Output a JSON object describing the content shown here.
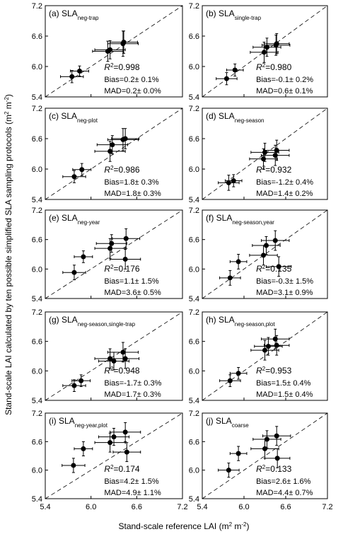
{
  "y_label": [
    "Stand-scale LAI calculated by ten possible simplified SLA sampling protocols (m",
    "2",
    " m",
    "-2",
    ")"
  ],
  "x_label": [
    "Stand-scale reference LAI (m",
    "2",
    " m",
    "-2",
    ")"
  ],
  "chart_data": [
    {
      "type": "scatter",
      "title": "(a) SLA",
      "title_sub": "neg-trap",
      "xlim": [
        5.4,
        7.2
      ],
      "ylim": [
        5.4,
        7.2
      ],
      "xticks": [
        5.4,
        6,
        6.6,
        7.2
      ],
      "show_xtick_labels": false,
      "yticks": [
        5.4,
        {
          "value": 6,
          "label": "6.0"
        },
        6.6,
        7.2
      ],
      "color": "#000000",
      "x": [
        5.75,
        5.85,
        6.22,
        6.25,
        6.42,
        6.43
      ],
      "y": [
        5.8,
        5.91,
        6.3,
        6.33,
        6.45,
        6.48
      ],
      "xerr": [
        0.15,
        0.12,
        0.2,
        0.2,
        0.2,
        0.18
      ],
      "yerr": [
        0.12,
        0.1,
        0.2,
        0.18,
        0.25,
        0.22
      ],
      "r2_symbol": "R",
      "r2_exponent": "2",
      "r2_text": "=0.998",
      "bias": "Bias=0.2± 0.1%",
      "mad": "MAD=0.2± 0.0%"
    },
    {
      "type": "scatter",
      "title": "(b) SLA",
      "title_sub": "single-trap",
      "xlim": [
        5.4,
        7.2
      ],
      "ylim": [
        5.4,
        7.2
      ],
      "xticks": [
        5.4,
        6,
        6.6,
        7.2
      ],
      "show_xtick_labels": false,
      "yticks": [
        5.4,
        {
          "value": 6,
          "label": "6.0"
        },
        6.6,
        7.2
      ],
      "color": "#000000",
      "x": [
        5.75,
        5.87,
        6.29,
        6.33,
        6.46,
        6.47
      ],
      "y": [
        5.76,
        5.93,
        6.28,
        6.38,
        6.42,
        6.45
      ],
      "xerr": [
        0.15,
        0.12,
        0.2,
        0.2,
        0.2,
        0.18
      ],
      "yerr": [
        0.12,
        0.12,
        0.2,
        0.18,
        0.2,
        0.2
      ],
      "r2_symbol": "R",
      "r2_exponent": "2",
      "r2_text": "=0.980",
      "bias": "Bias=-0.1± 0.2%",
      "mad": "MAD=0.6± 0.1%"
    },
    {
      "type": "scatter",
      "title": "(c) SLA",
      "title_sub": "neg-plot",
      "xlim": [
        5.4,
        7.2
      ],
      "ylim": [
        5.4,
        7.2
      ],
      "xticks": [
        5.4,
        6,
        6.6,
        7.2
      ],
      "show_xtick_labels": false,
      "yticks": [
        5.4,
        {
          "value": 6,
          "label": "6.0"
        },
        6.6,
        7.2
      ],
      "color": "#000000",
      "x": [
        5.78,
        5.88,
        6.25,
        6.28,
        6.42,
        6.45
      ],
      "y": [
        5.85,
        5.99,
        6.35,
        6.48,
        6.58,
        6.6
      ],
      "xerr": [
        0.15,
        0.12,
        0.2,
        0.2,
        0.2,
        0.18
      ],
      "yerr": [
        0.12,
        0.12,
        0.2,
        0.18,
        0.22,
        0.2
      ],
      "r2_symbol": "R",
      "r2_exponent": "2",
      "r2_text": "=0.986",
      "bias": "Bias=1.8± 0.3%",
      "mad": "MAD=1.8± 0.3%"
    },
    {
      "type": "scatter",
      "title": "(d) SLA",
      "title_sub": "neg-season",
      "xlim": [
        5.4,
        7.2
      ],
      "ylim": [
        5.4,
        7.2
      ],
      "xticks": [
        5.4,
        6,
        6.6,
        7.2
      ],
      "show_xtick_labels": false,
      "yticks": [
        5.4,
        {
          "value": 6,
          "label": "6.0"
        },
        6.6,
        7.2
      ],
      "color": "#000000",
      "x": [
        5.78,
        5.85,
        6.28,
        6.3,
        6.45,
        6.47
      ],
      "y": [
        5.73,
        5.77,
        6.2,
        6.33,
        6.27,
        6.37
      ],
      "xerr": [
        0.15,
        0.12,
        0.2,
        0.2,
        0.2,
        0.18
      ],
      "yerr": [
        0.15,
        0.12,
        0.2,
        0.18,
        0.2,
        0.2
      ],
      "r2_symbol": "R",
      "r2_exponent": "2",
      "r2_text": "=0.932",
      "bias": "Bias=-1.2± 0.4%",
      "mad": "MAD=1.4± 0.2%"
    },
    {
      "type": "scatter",
      "title": "(e) SLA",
      "title_sub": "neg-year",
      "xlim": [
        5.4,
        7.2
      ],
      "ylim": [
        5.4,
        7.2
      ],
      "xticks": [
        5.4,
        6,
        6.6,
        7.2
      ],
      "show_xtick_labels": false,
      "yticks": [
        5.4,
        {
          "value": 6,
          "label": "6.0"
        },
        6.6,
        7.2
      ],
      "color": "#000000",
      "x": [
        5.78,
        5.9,
        6.25,
        6.27,
        6.45,
        6.46
      ],
      "y": [
        5.93,
        6.25,
        6.42,
        6.52,
        6.2,
        6.62
      ],
      "xerr": [
        0.15,
        0.12,
        0.2,
        0.2,
        0.2,
        0.18
      ],
      "yerr": [
        0.15,
        0.12,
        0.2,
        0.18,
        0.2,
        0.2
      ],
      "r2_symbol": "R",
      "r2_exponent": "2",
      "r2_text": "=0.176",
      "bias": "Bias=1.1± 1.5%",
      "mad": "MAD=3.6± 0.5%"
    },
    {
      "type": "scatter",
      "title": "(f) SLA",
      "title_sub": "neg-season,year",
      "xlim": [
        5.4,
        7.2
      ],
      "ylim": [
        5.4,
        7.2
      ],
      "xticks": [
        5.4,
        6,
        6.6,
        7.2
      ],
      "show_xtick_labels": false,
      "yticks": [
        5.4,
        {
          "value": 6,
          "label": "6.0"
        },
        6.6,
        7.2
      ],
      "color": "#000000",
      "x": [
        5.8,
        5.92,
        6.28,
        6.32,
        6.45,
        6.5
      ],
      "y": [
        5.82,
        6.15,
        6.28,
        6.48,
        6.58,
        6.05
      ],
      "xerr": [
        0.15,
        0.12,
        0.2,
        0.2,
        0.2,
        0.18
      ],
      "yerr": [
        0.15,
        0.15,
        0.2,
        0.18,
        0.2,
        0.2
      ],
      "r2_symbol": "R",
      "r2_exponent": "2",
      "r2_text": "=0.135",
      "bias": "Bias=-0.3± 1.5%",
      "mad": "MAD=3.1± 0.9%"
    },
    {
      "type": "scatter",
      "title": "(g) SLA",
      "title_sub": "neg-season,single-trap",
      "xlim": [
        5.4,
        7.2
      ],
      "ylim": [
        5.4,
        7.2
      ],
      "xticks": [
        5.4,
        6,
        6.6,
        7.2
      ],
      "show_xtick_labels": false,
      "yticks": [
        5.4,
        {
          "value": 6,
          "label": "6.0"
        },
        6.6,
        7.2
      ],
      "color": "#000000",
      "x": [
        5.78,
        5.87,
        6.25,
        6.3,
        6.42,
        6.45
      ],
      "y": [
        5.7,
        5.8,
        6.25,
        6.2,
        6.38,
        6.25
      ],
      "xerr": [
        0.15,
        0.12,
        0.2,
        0.2,
        0.2,
        0.18
      ],
      "yerr": [
        0.12,
        0.12,
        0.2,
        0.18,
        0.2,
        0.2
      ],
      "r2_symbol": "R",
      "r2_exponent": "2",
      "r2_text": "=0.948",
      "bias": "Bias=-1.7± 0.3%",
      "mad": "MAD=1.7± 0.3%"
    },
    {
      "type": "scatter",
      "title": "(h) SLA",
      "title_sub": "neg-season,plot",
      "xlim": [
        5.4,
        7.2
      ],
      "ylim": [
        5.4,
        7.2
      ],
      "xticks": [
        5.4,
        6,
        6.6,
        7.2
      ],
      "show_xtick_labels": false,
      "yticks": [
        5.4,
        {
          "value": 6,
          "label": "6.0"
        },
        6.6,
        7.2
      ],
      "color": "#000000",
      "x": [
        5.8,
        5.92,
        6.3,
        6.35,
        6.45,
        6.47
      ],
      "y": [
        5.8,
        5.95,
        6.42,
        6.5,
        6.65,
        6.52
      ],
      "xerr": [
        0.15,
        0.12,
        0.2,
        0.2,
        0.2,
        0.18
      ],
      "yerr": [
        0.12,
        0.12,
        0.2,
        0.18,
        0.2,
        0.2
      ],
      "r2_symbol": "R",
      "r2_exponent": "2",
      "r2_text": "=0.953",
      "bias": "Bias=1.5± 0.4%",
      "mad": "MAD=1.5± 0.4%"
    },
    {
      "type": "scatter",
      "title": "(i) SLA",
      "title_sub": "neg-year,plot",
      "xlim": [
        5.4,
        7.2
      ],
      "ylim": [
        5.4,
        7.2
      ],
      "xticks": [
        5.4,
        {
          "value": 6,
          "label": "6.0"
        },
        6.6,
        7.2
      ],
      "show_xtick_labels": true,
      "yticks": [
        5.4,
        {
          "value": 6,
          "label": "6.0"
        },
        6.6,
        7.2
      ],
      "color": "#000000",
      "x": [
        5.77,
        5.9,
        6.25,
        6.3,
        6.45,
        6.47
      ],
      "y": [
        6.1,
        6.45,
        6.58,
        6.7,
        6.8,
        6.38
      ],
      "xerr": [
        0.15,
        0.12,
        0.2,
        0.2,
        0.2,
        0.18
      ],
      "yerr": [
        0.15,
        0.15,
        0.2,
        0.18,
        0.2,
        0.2
      ],
      "r2_symbol": "R",
      "r2_exponent": "2",
      "r2_text": "=0.174",
      "bias": "Bias=4.2± 1.5%",
      "mad": "MAD=4.9± 1.1%"
    },
    {
      "type": "scatter",
      "title": "(j) SLA",
      "title_sub": "coarse",
      "xlim": [
        5.4,
        7.2
      ],
      "ylim": [
        5.4,
        7.2
      ],
      "xticks": [
        5.4,
        {
          "value": 6,
          "label": "6.0"
        },
        6.6,
        7.2
      ],
      "show_xtick_labels": true,
      "yticks": [
        5.4,
        {
          "value": 6,
          "label": "6.0"
        },
        6.6,
        7.2
      ],
      "color": "#000000",
      "x": [
        5.78,
        5.92,
        6.3,
        6.33,
        6.47,
        6.48
      ],
      "y": [
        6.0,
        6.35,
        6.45,
        6.65,
        6.72,
        6.25
      ],
      "xerr": [
        0.15,
        0.12,
        0.2,
        0.2,
        0.2,
        0.18
      ],
      "yerr": [
        0.15,
        0.15,
        0.2,
        0.18,
        0.2,
        0.2
      ],
      "r2_symbol": "R",
      "r2_exponent": "2",
      "r2_text": "=0.133",
      "bias": "Bias=2.6± 1.6%",
      "mad": "MAD=4.4± 0.7%"
    }
  ]
}
